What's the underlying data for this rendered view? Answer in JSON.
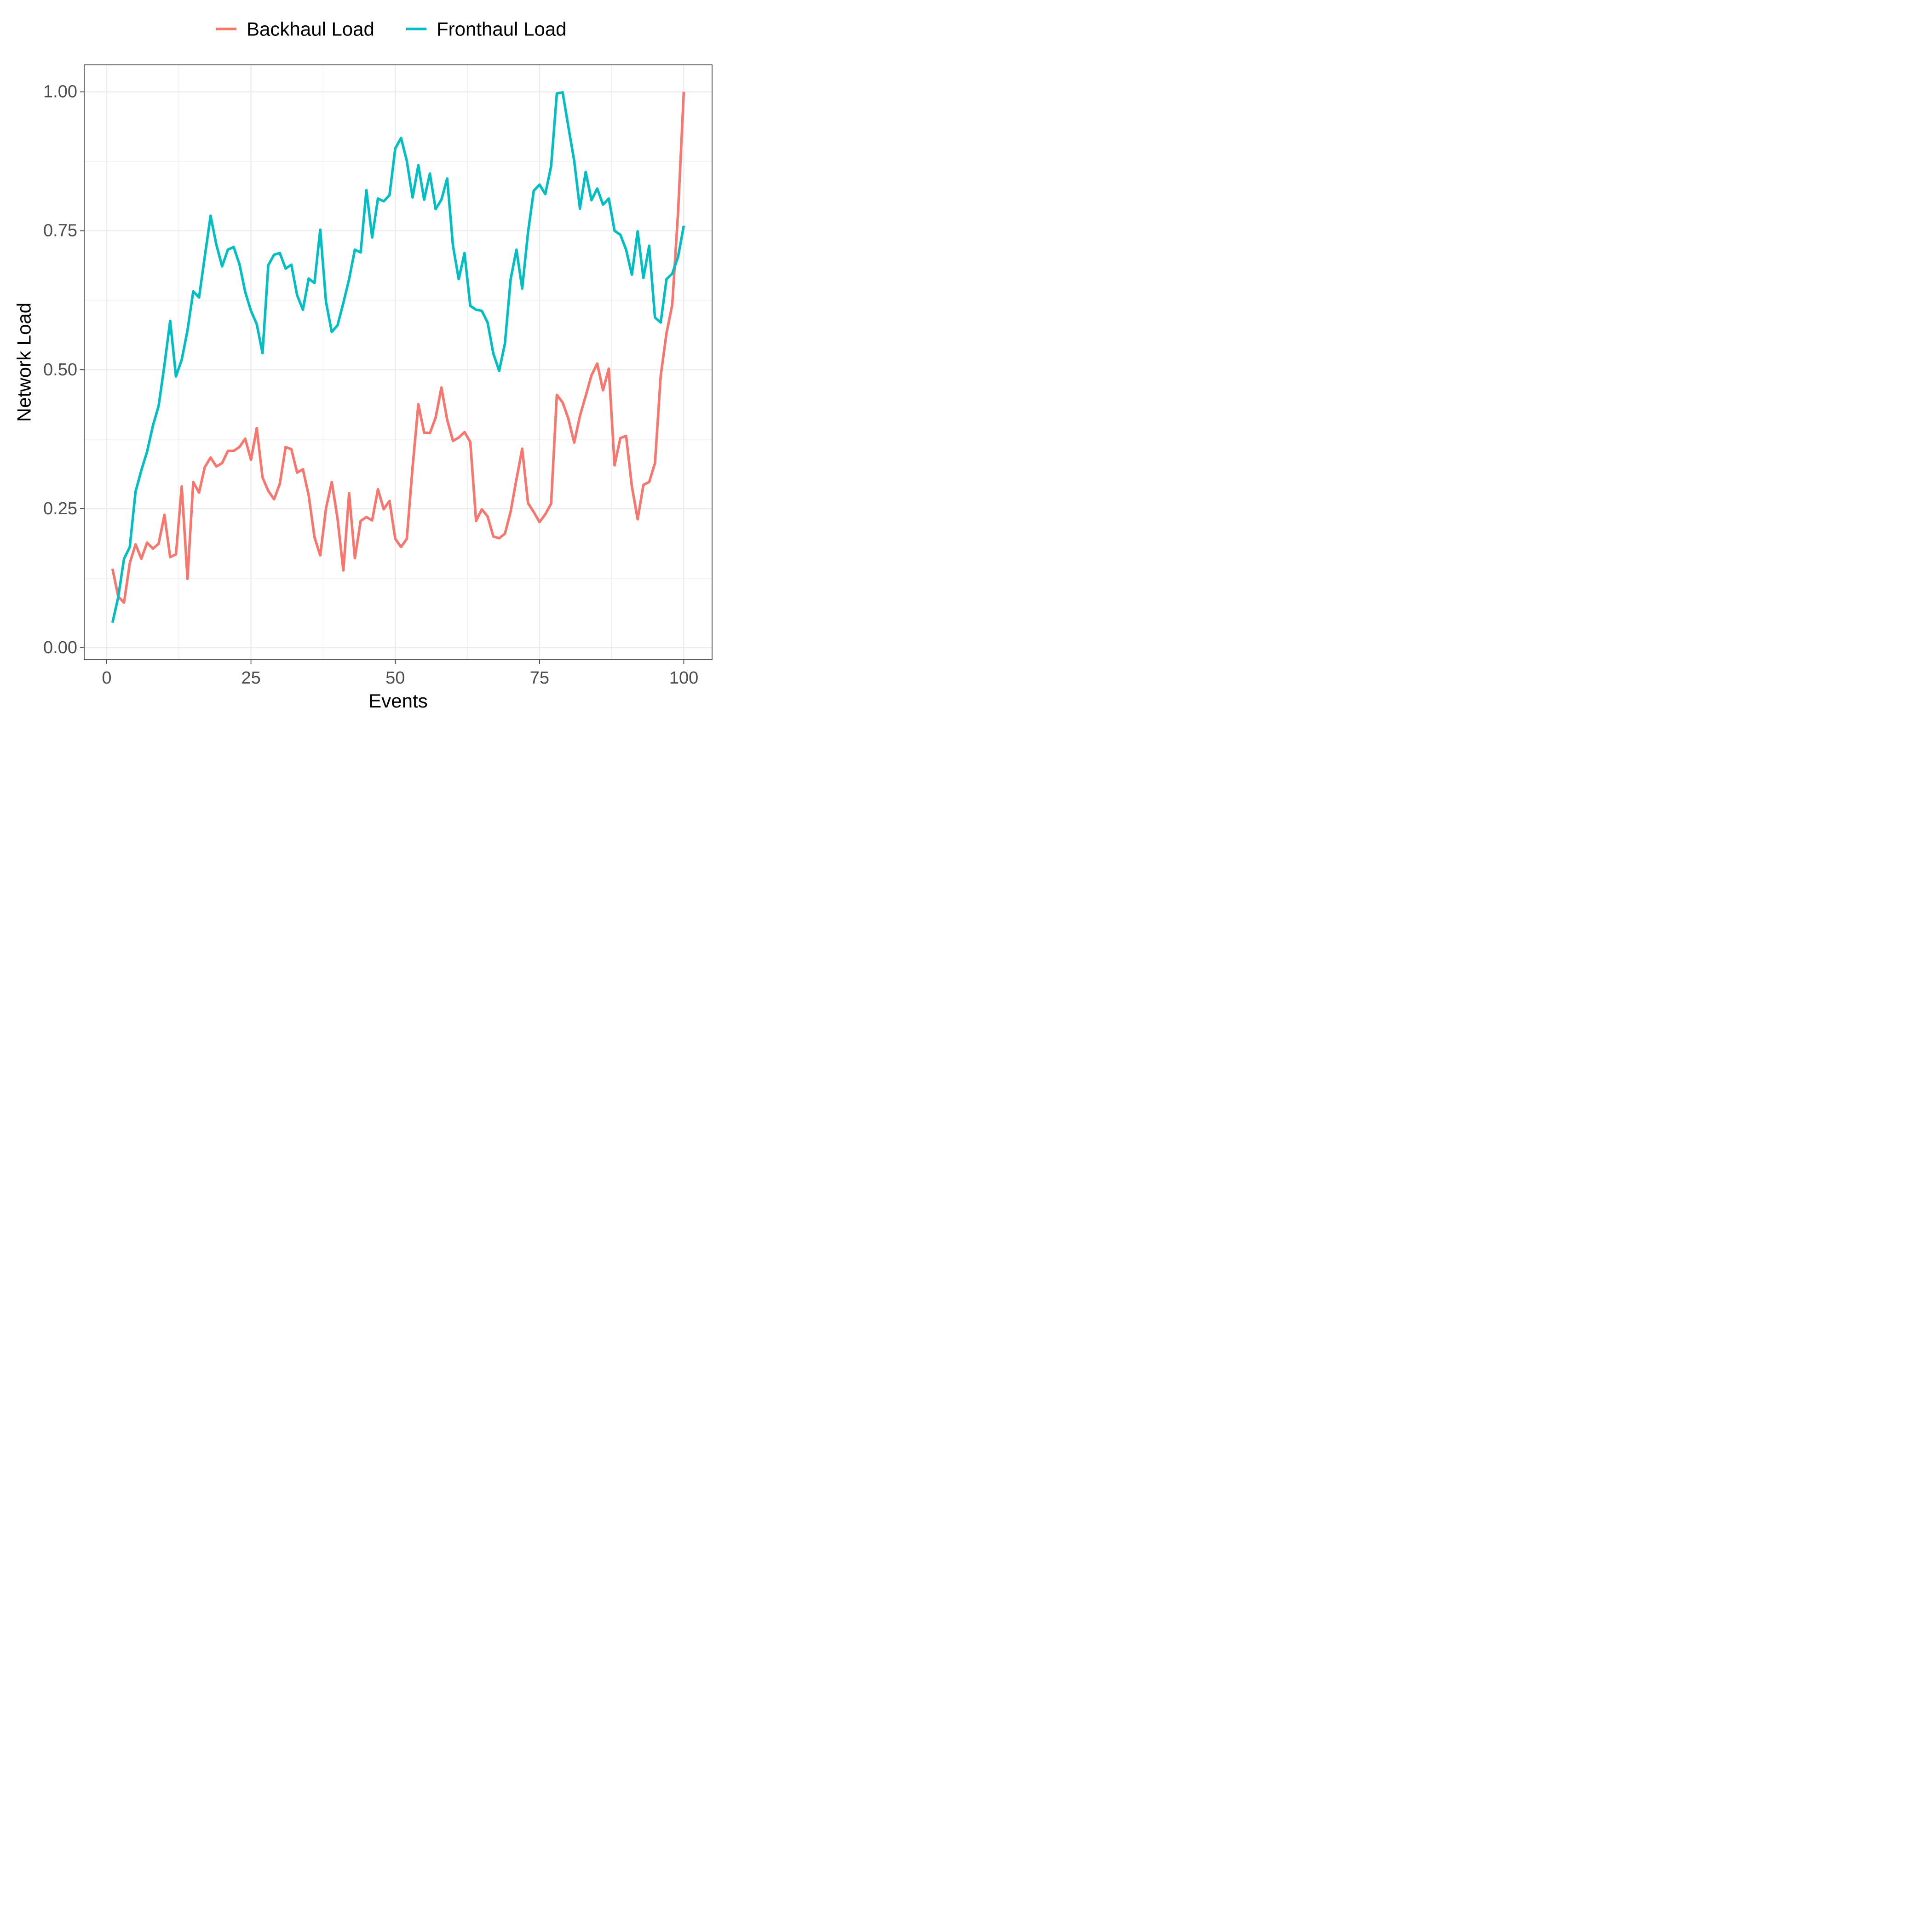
{
  "chart_data": {
    "type": "line",
    "title": "",
    "xlabel": "Events",
    "ylabel": "Network Load",
    "xlim": [
      -3.9,
      104.9
    ],
    "ylim": [
      -0.0215,
      1.0485
    ],
    "x_ticks": [
      0,
      25,
      50,
      75,
      100
    ],
    "x_tick_labels": [
      "0",
      "25",
      "50",
      "75",
      "100"
    ],
    "y_ticks": [
      0,
      0.25,
      0.5,
      0.75,
      1.0
    ],
    "y_tick_labels": [
      "0.00",
      "0.25",
      "0.50",
      "0.75",
      "1.00"
    ],
    "grid": true,
    "legend_position": "top",
    "x": [
      1,
      2,
      3,
      4,
      5,
      6,
      7,
      8,
      9,
      10,
      11,
      12,
      13,
      14,
      15,
      16,
      17,
      18,
      19,
      20,
      21,
      22,
      23,
      24,
      25,
      26,
      27,
      28,
      29,
      30,
      31,
      32,
      33,
      34,
      35,
      36,
      37,
      38,
      39,
      40,
      41,
      42,
      43,
      44,
      45,
      46,
      47,
      48,
      49,
      50,
      51,
      52,
      53,
      54,
      55,
      56,
      57,
      58,
      59,
      60,
      61,
      62,
      63,
      64,
      65,
      66,
      67,
      68,
      69,
      70,
      71,
      72,
      73,
      74,
      75,
      76,
      77,
      78,
      79,
      80,
      81,
      82,
      83,
      84,
      85,
      86,
      87,
      88,
      89,
      90,
      91,
      92,
      93,
      94,
      95,
      96,
      97,
      98,
      99,
      100
    ],
    "series": [
      {
        "name": "Backhaul Load",
        "color": "#F8766D",
        "values": [
          0.142,
          0.092,
          0.081,
          0.152,
          0.186,
          0.16,
          0.189,
          0.178,
          0.187,
          0.239,
          0.163,
          0.168,
          0.29,
          0.124,
          0.298,
          0.279,
          0.325,
          0.342,
          0.326,
          0.332,
          0.354,
          0.354,
          0.361,
          0.376,
          0.338,
          0.395,
          0.306,
          0.282,
          0.267,
          0.295,
          0.361,
          0.357,
          0.315,
          0.321,
          0.274,
          0.199,
          0.166,
          0.251,
          0.298,
          0.232,
          0.139,
          0.278,
          0.161,
          0.228,
          0.235,
          0.229,
          0.285,
          0.249,
          0.264,
          0.196,
          0.181,
          0.196,
          0.325,
          0.438,
          0.387,
          0.386,
          0.414,
          0.468,
          0.41,
          0.372,
          0.378,
          0.388,
          0.37,
          0.228,
          0.249,
          0.236,
          0.2,
          0.197,
          0.205,
          0.245,
          0.303,
          0.358,
          0.26,
          0.244,
          0.226,
          0.24,
          0.259,
          0.455,
          0.441,
          0.412,
          0.369,
          0.417,
          0.453,
          0.49,
          0.511,
          0.463,
          0.502,
          0.328,
          0.377,
          0.381,
          0.29,
          0.231,
          0.293,
          0.298,
          0.332,
          0.489,
          0.566,
          0.617,
          0.783,
          1.0
        ]
      },
      {
        "name": "Fronthaul Load",
        "color": "#00BFC4",
        "values": [
          0.045,
          0.091,
          0.16,
          0.181,
          0.281,
          0.319,
          0.353,
          0.399,
          0.435,
          0.508,
          0.588,
          0.488,
          0.518,
          0.571,
          0.641,
          0.63,
          0.704,
          0.777,
          0.725,
          0.686,
          0.716,
          0.721,
          0.69,
          0.64,
          0.606,
          0.582,
          0.53,
          0.688,
          0.707,
          0.71,
          0.682,
          0.689,
          0.634,
          0.608,
          0.664,
          0.656,
          0.752,
          0.622,
          0.568,
          0.58,
          0.62,
          0.663,
          0.716,
          0.711,
          0.823,
          0.738,
          0.808,
          0.803,
          0.814,
          0.898,
          0.917,
          0.876,
          0.81,
          0.868,
          0.806,
          0.853,
          0.789,
          0.806,
          0.844,
          0.723,
          0.663,
          0.71,
          0.615,
          0.608,
          0.606,
          0.585,
          0.529,
          0.498,
          0.547,
          0.663,
          0.716,
          0.646,
          0.747,
          0.822,
          0.833,
          0.816,
          0.866,
          0.997,
          0.999,
          0.937,
          0.876,
          0.79,
          0.856,
          0.805,
          0.826,
          0.797,
          0.808,
          0.75,
          0.743,
          0.716,
          0.671,
          0.749,
          0.665,
          0.723,
          0.594,
          0.585,
          0.663,
          0.673,
          0.703,
          0.759
        ]
      }
    ]
  }
}
